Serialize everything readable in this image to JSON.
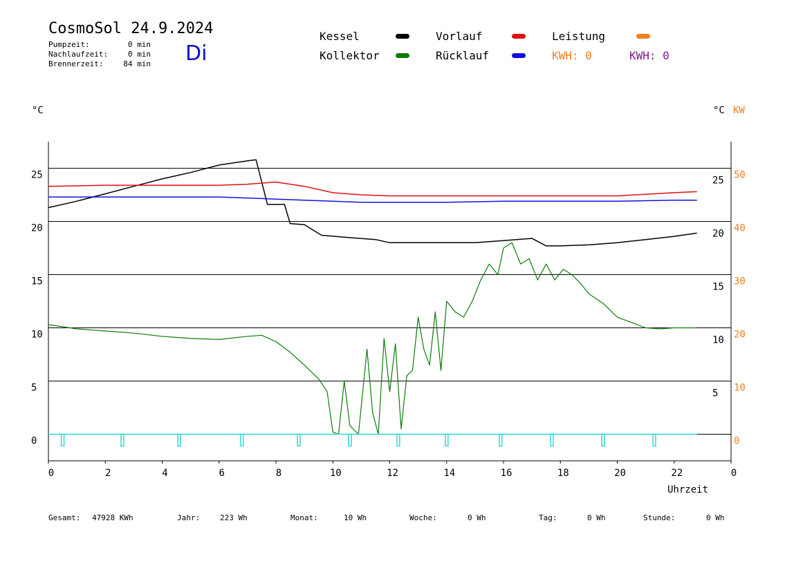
{
  "header": {
    "title": "CosmoSol 24.9.2024",
    "weekday": "Di",
    "stats": [
      {
        "label": "Pumpzeit:",
        "value": "0 min"
      },
      {
        "label": "Nachlaufzeit:",
        "value": "0 min"
      },
      {
        "label": "Brennerzeit:",
        "value": "84 min"
      }
    ]
  },
  "legend": {
    "kessel": {
      "label": "Kessel",
      "color": "#000000"
    },
    "kollektor": {
      "label": "Kollektor",
      "color": "#0a7a0a"
    },
    "vorlauf": {
      "label": "Vorlauf",
      "color": "#e01010"
    },
    "ruecklauf": {
      "label": "Rücklauf",
      "color": "#1010e0"
    },
    "leistung": {
      "label": "Leistung",
      "color": "#f08020"
    },
    "kwh_orange": {
      "label": "KWH: 0",
      "color": "#f08020"
    },
    "kwh_purple": {
      "label": "KWH: 0",
      "color": "#7a1a8a"
    }
  },
  "chart_data": {
    "type": "line",
    "xlabel": "Uhrzeit",
    "x_ticks": [
      "0",
      "2",
      "4",
      "6",
      "8",
      "10",
      "12",
      "14",
      "16",
      "18",
      "20",
      "22",
      "0"
    ],
    "y_left_unit": "°C",
    "y_right_unit": "°C",
    "y_right2_unit": "KW",
    "y_left_ticks": [
      "25",
      "20",
      "15",
      "10",
      "5",
      "0"
    ],
    "y_right_ticks": [
      "25",
      "20",
      "15",
      "10",
      "5"
    ],
    "y_right2_ticks": [
      "50",
      "40",
      "30",
      "20",
      "10",
      "0"
    ],
    "xlim": [
      0,
      24
    ],
    "ylim": [
      -2.5,
      27.5
    ],
    "grid": true,
    "series": [
      {
        "name": "Kessel",
        "color": "#000000",
        "x": [
          0,
          1,
          2,
          3,
          4,
          5,
          6,
          7,
          7.3,
          7.7,
          8.3,
          8.5,
          9,
          9.6,
          10.5,
          11.5,
          12,
          13,
          14,
          15,
          16,
          17,
          17.5,
          18,
          19,
          20,
          21,
          22,
          22.8
        ],
        "y": [
          21.3,
          21.9,
          22.6,
          23.3,
          24,
          24.6,
          25.3,
          25.7,
          25.8,
          21.6,
          21.6,
          19.8,
          19.7,
          18.7,
          18.5,
          18.3,
          18.0,
          18.0,
          18.0,
          18.0,
          18.2,
          18.4,
          17.7,
          17.7,
          17.8,
          18.0,
          18.3,
          18.6,
          18.9
        ]
      },
      {
        "name": "Kollektor",
        "color": "#0a7a0a",
        "x": [
          0,
          1,
          2,
          3,
          4,
          5,
          6,
          7,
          7.5,
          8,
          8.5,
          9,
          9.5,
          9.8,
          10,
          10.2,
          10.4,
          10.6,
          10.9,
          11.2,
          11.4,
          11.6,
          11.8,
          12,
          12.2,
          12.4,
          12.6,
          12.8,
          13,
          13.2,
          13.4,
          13.6,
          13.8,
          14,
          14.3,
          14.6,
          14.9,
          15.2,
          15.5,
          15.8,
          16,
          16.3,
          16.6,
          16.9,
          17.2,
          17.5,
          17.8,
          18.1,
          18.4,
          18.7,
          19,
          19.5,
          20,
          20.5,
          21,
          21.5,
          22,
          22.5,
          22.8
        ],
        "y": [
          10.3,
          9.9,
          9.7,
          9.5,
          9.2,
          9.0,
          8.9,
          9.2,
          9.3,
          8.7,
          7.7,
          6.5,
          5.2,
          4.0,
          0.2,
          0.0,
          5.0,
          0.8,
          0.0,
          8.0,
          2.0,
          0.0,
          9.0,
          4.0,
          8.5,
          0.5,
          5.5,
          6.0,
          11.0,
          8.0,
          6.5,
          11.5,
          6.0,
          12.5,
          11.5,
          11.0,
          12.5,
          14.5,
          16.0,
          15.0,
          17.5,
          18.0,
          16.0,
          16.5,
          14.5,
          16.0,
          14.5,
          15.5,
          15.0,
          14.2,
          13.2,
          12.3,
          11.0,
          10.5,
          10.0,
          9.9,
          10.0,
          10.0,
          10.0
        ]
      },
      {
        "name": "Vorlauf",
        "color": "#e01010",
        "x": [
          0,
          2,
          4,
          6,
          7,
          8,
          9,
          10,
          11,
          12,
          14,
          16,
          18,
          20,
          22,
          22.8
        ],
        "y": [
          23.3,
          23.4,
          23.4,
          23.4,
          23.5,
          23.7,
          23.3,
          22.7,
          22.5,
          22.4,
          22.4,
          22.4,
          22.4,
          22.4,
          22.7,
          22.8
        ]
      },
      {
        "name": "Rücklauf",
        "color": "#1010e0",
        "x": [
          0,
          2,
          4,
          6,
          7,
          8,
          9,
          10,
          11,
          12,
          14,
          16,
          18,
          20,
          22,
          22.8
        ],
        "y": [
          22.3,
          22.3,
          22.3,
          22.3,
          22.2,
          22.1,
          22.0,
          21.9,
          21.8,
          21.8,
          21.8,
          21.9,
          21.9,
          21.9,
          22.0,
          22.0
        ]
      },
      {
        "name": "Leistung",
        "color": "#30d8d8",
        "x": [
          0,
          22.8
        ],
        "y": [
          0,
          0
        ]
      }
    ],
    "pump_markers_x": [
      0.5,
      2.6,
      4.6,
      6.8,
      8.8,
      10.6,
      12.3,
      14.0,
      15.9,
      17.7,
      19.5,
      21.3
    ]
  },
  "footer": [
    {
      "label": "Gesamt:",
      "value": "47928 KWh"
    },
    {
      "label": "Jahr:",
      "value": "223 Wh"
    },
    {
      "label": "Monat:",
      "value": "10 Wh"
    },
    {
      "label": "Woche:",
      "value": "0 Wh"
    },
    {
      "label": "Tag:",
      "value": "0 Wh"
    },
    {
      "label": "Stunde:",
      "value": "0 Wh"
    }
  ]
}
